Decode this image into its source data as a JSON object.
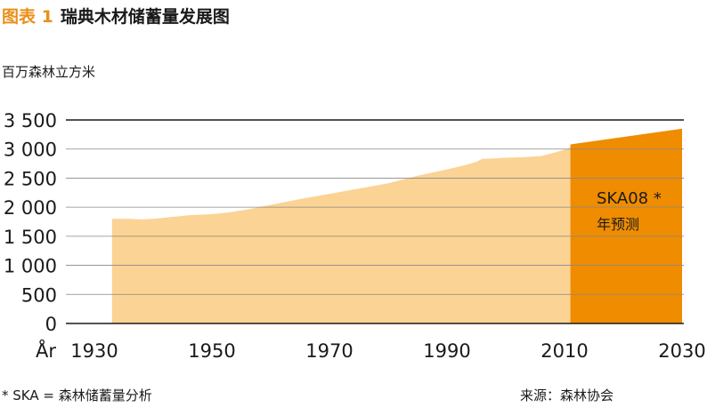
{
  "header": {
    "figure_label": "图表 1",
    "title": "瑞典木材储蓄量发展图"
  },
  "chart_data": {
    "type": "area",
    "title": "瑞典木材储蓄量发展图",
    "ylabel": "百万森林立方米",
    "xlabel": "År",
    "xlim": [
      1930,
      2030
    ],
    "ylim": [
      0,
      3500
    ],
    "x_ticks": [
      1930,
      1950,
      1970,
      1990,
      2010,
      2030
    ],
    "x_tick_labels": [
      "1930",
      "1950",
      "1970",
      "1990",
      "2010",
      "2030"
    ],
    "y_ticks": [
      0,
      500,
      1000,
      1500,
      2000,
      2500,
      3000,
      3500
    ],
    "y_tick_labels": [
      "0",
      "500",
      "1 000",
      "1 500",
      "2 000",
      "2 500",
      "3 000",
      "3 500"
    ],
    "grid": true,
    "colors": {
      "historical": "#fbd394",
      "forecast": "#ef8c00",
      "grid": "#888888",
      "title_accent": "#e8901a"
    },
    "series": [
      {
        "x": [
          1933,
          1936,
          1938,
          1940,
          1943,
          1946,
          1950,
          1953,
          1956,
          1960,
          1965,
          1970,
          1975,
          1980,
          1985,
          1990,
          1993,
          1995,
          1996,
          1998,
          2000,
          2003,
          2006,
          2008,
          2010,
          2012
        ],
        "values": [
          1800,
          1800,
          1790,
          1800,
          1830,
          1860,
          1880,
          1910,
          1960,
          2040,
          2140,
          2230,
          2320,
          2410,
          2540,
          2650,
          2720,
          2780,
          2830,
          2840,
          2850,
          2860,
          2880,
          2930,
          2990,
          3060
        ]
      },
      {
        "name": "SKA08 * 年预测",
        "x": [
          2011,
          2030
        ],
        "values": [
          3080,
          3350
        ]
      }
    ],
    "annotation": {
      "line1": "SKA08 *",
      "line2": "年预测"
    }
  },
  "footer": {
    "footnote": "* SKA = 森林储蓄量分析",
    "source": "来源：森林协会"
  }
}
